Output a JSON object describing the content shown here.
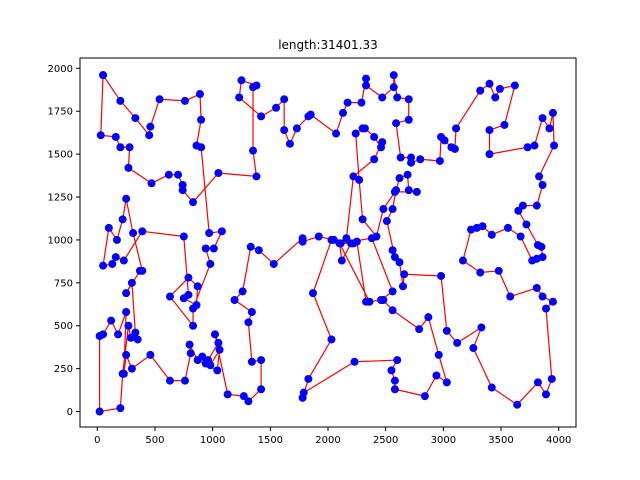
{
  "chart_data": {
    "type": "line",
    "title": "length:31401.33",
    "xlim": [
      -150,
      4150
    ],
    "ylim": [
      -90,
      2060
    ],
    "xticks": [
      0,
      500,
      1000,
      1500,
      2000,
      2500,
      3000,
      3500,
      4000
    ],
    "yticks": [
      0,
      250,
      500,
      750,
      1000,
      1250,
      1500,
      1750,
      2000
    ],
    "grid": false,
    "series": [
      {
        "line_color": "#ff0000",
        "marker_color": "#0000ff",
        "points": [
          [
            50,
            1960
          ],
          [
            30,
            1610
          ],
          [
            160,
            1600
          ],
          [
            200,
            1540
          ],
          [
            280,
            1540
          ],
          [
            270,
            1420
          ],
          [
            470,
            1330
          ],
          [
            620,
            1380
          ],
          [
            700,
            1380
          ],
          [
            740,
            1320
          ],
          [
            740,
            1290
          ],
          [
            830,
            1220
          ],
          [
            1050,
            1390
          ],
          [
            1380,
            1370
          ],
          [
            1350,
            1520
          ],
          [
            1350,
            1890
          ],
          [
            1380,
            1900
          ],
          [
            1250,
            1930
          ],
          [
            1230,
            1830
          ],
          [
            1420,
            1720
          ],
          [
            1550,
            1770
          ],
          [
            1620,
            1820
          ],
          [
            1620,
            1640
          ],
          [
            1670,
            1560
          ],
          [
            1730,
            1650
          ],
          [
            1830,
            1720
          ],
          [
            1850,
            1730
          ],
          [
            2070,
            1620
          ],
          [
            2130,
            1740
          ],
          [
            2170,
            1800
          ],
          [
            2290,
            1800
          ],
          [
            2330,
            1940
          ],
          [
            2330,
            1900
          ],
          [
            2470,
            1830
          ],
          [
            2570,
            1890
          ],
          [
            2570,
            1960
          ],
          [
            2600,
            1830
          ],
          [
            2700,
            1820
          ],
          [
            2700,
            1700
          ],
          [
            2590,
            1680
          ],
          [
            2630,
            1480
          ],
          [
            2720,
            1480
          ],
          [
            2720,
            1450
          ],
          [
            2800,
            1470
          ],
          [
            2970,
            1460
          ],
          [
            2980,
            1600
          ],
          [
            3010,
            1580
          ],
          [
            3070,
            1540
          ],
          [
            3100,
            1530
          ],
          [
            3110,
            1650
          ],
          [
            3320,
            1870
          ],
          [
            3400,
            1910
          ],
          [
            3450,
            1830
          ],
          [
            3490,
            1880
          ],
          [
            3620,
            1900
          ],
          [
            3530,
            1670
          ],
          [
            3400,
            1640
          ],
          [
            3400,
            1500
          ],
          [
            3730,
            1540
          ],
          [
            3790,
            1550
          ],
          [
            3860,
            1710
          ],
          [
            3920,
            1650
          ],
          [
            3950,
            1740
          ],
          [
            3960,
            1550
          ],
          [
            3830,
            1370
          ],
          [
            3860,
            1320
          ],
          [
            3810,
            1200
          ],
          [
            3690,
            1200
          ],
          [
            3650,
            1170
          ],
          [
            3720,
            1090
          ],
          [
            3820,
            970
          ],
          [
            3850,
            960
          ],
          [
            3860,
            900
          ],
          [
            3810,
            890
          ],
          [
            3770,
            880
          ],
          [
            3670,
            1020
          ],
          [
            3560,
            1070
          ],
          [
            3420,
            1030
          ],
          [
            3340,
            1080
          ],
          [
            3290,
            1070
          ],
          [
            3240,
            1060
          ],
          [
            3170,
            880
          ],
          [
            3320,
            810
          ],
          [
            3480,
            820
          ],
          [
            3580,
            670
          ],
          [
            3810,
            720
          ],
          [
            3860,
            670
          ],
          [
            3950,
            640
          ],
          [
            3890,
            600
          ],
          [
            3940,
            190
          ],
          [
            3890,
            100
          ],
          [
            3820,
            170
          ],
          [
            3640,
            40
          ],
          [
            3420,
            140
          ],
          [
            3260,
            370
          ],
          [
            3330,
            490
          ],
          [
            3120,
            400
          ],
          [
            3030,
            470
          ],
          [
            2980,
            790
          ],
          [
            2660,
            800
          ],
          [
            2650,
            730
          ],
          [
            2620,
            870
          ],
          [
            2560,
            940
          ],
          [
            2580,
            900
          ],
          [
            2510,
            1110
          ],
          [
            2560,
            1180
          ],
          [
            2590,
            1290
          ],
          [
            2620,
            1360
          ],
          [
            2690,
            1380
          ],
          [
            2700,
            1290
          ],
          [
            2770,
            1280
          ],
          [
            2580,
            1280
          ],
          [
            2480,
            1180
          ],
          [
            2420,
            1020
          ],
          [
            2300,
            1120
          ],
          [
            2270,
            1350
          ],
          [
            2240,
            1620
          ],
          [
            2300,
            1650
          ],
          [
            2320,
            1650
          ],
          [
            2400,
            1600
          ],
          [
            2460,
            1540
          ],
          [
            2470,
            1570
          ],
          [
            2400,
            1470
          ],
          [
            2220,
            1370
          ],
          [
            2160,
            1010
          ],
          [
            2220,
            980
          ],
          [
            2110,
            980
          ],
          [
            2380,
            1010
          ],
          [
            2560,
            700
          ],
          [
            2460,
            650
          ],
          [
            2360,
            640
          ],
          [
            2100,
            980
          ],
          [
            2120,
            880
          ],
          [
            2200,
            980
          ],
          [
            2030,
            1000
          ],
          [
            1870,
            690
          ],
          [
            2030,
            420
          ],
          [
            1830,
            190
          ],
          [
            1780,
            80
          ],
          [
            1790,
            110
          ],
          [
            2230,
            290
          ],
          [
            2600,
            300
          ],
          [
            2550,
            240
          ],
          [
            2580,
            180
          ],
          [
            2580,
            130
          ],
          [
            2840,
            90
          ],
          [
            2940,
            210
          ],
          [
            3030,
            170
          ],
          [
            2960,
            330
          ],
          [
            2870,
            550
          ],
          [
            2790,
            480
          ],
          [
            2560,
            590
          ],
          [
            2480,
            650
          ],
          [
            2330,
            640
          ],
          [
            2250,
            990
          ],
          [
            2050,
            1000
          ],
          [
            1920,
            1020
          ],
          [
            1780,
            990
          ],
          [
            1780,
            1010
          ],
          [
            1530,
            860
          ],
          [
            1400,
            940
          ],
          [
            1330,
            960
          ],
          [
            1260,
            700
          ],
          [
            1190,
            650
          ],
          [
            1340,
            580
          ],
          [
            1310,
            520
          ],
          [
            1340,
            290
          ],
          [
            1420,
            300
          ],
          [
            1420,
            130
          ],
          [
            1310,
            60
          ],
          [
            1270,
            90
          ],
          [
            1130,
            100
          ],
          [
            1020,
            450
          ],
          [
            1050,
            400
          ],
          [
            960,
            300
          ],
          [
            910,
            320
          ],
          [
            940,
            280
          ],
          [
            980,
            270
          ],
          [
            1060,
            360
          ],
          [
            1040,
            240
          ],
          [
            870,
            300
          ],
          [
            800,
            390
          ],
          [
            810,
            340
          ],
          [
            760,
            180
          ],
          [
            630,
            180
          ],
          [
            460,
            330
          ],
          [
            300,
            250
          ],
          [
            250,
            330
          ],
          [
            230,
            220
          ],
          [
            250,
            580
          ],
          [
            180,
            450
          ],
          [
            120,
            530
          ],
          [
            50,
            450
          ],
          [
            20,
            440
          ],
          [
            20,
            0
          ],
          [
            200,
            20
          ],
          [
            220,
            220
          ],
          [
            270,
            500
          ],
          [
            290,
            430
          ],
          [
            350,
            420
          ],
          [
            330,
            460
          ],
          [
            300,
            750
          ],
          [
            250,
            690
          ],
          [
            370,
            820
          ],
          [
            390,
            820
          ],
          [
            310,
            1040
          ],
          [
            250,
            1240
          ],
          [
            220,
            1120
          ],
          [
            170,
            1000
          ],
          [
            100,
            1070
          ],
          [
            50,
            850
          ],
          [
            130,
            860
          ],
          [
            160,
            900
          ],
          [
            230,
            880
          ],
          [
            390,
            1050
          ],
          [
            750,
            1020
          ],
          [
            790,
            680
          ],
          [
            750,
            660
          ],
          [
            860,
            620
          ],
          [
            870,
            730
          ],
          [
            790,
            780
          ],
          [
            630,
            670
          ],
          [
            830,
            500
          ],
          [
            830,
            600
          ],
          [
            980,
            860
          ],
          [
            940,
            950
          ],
          [
            1010,
            950
          ],
          [
            1080,
            1050
          ],
          [
            970,
            1040
          ],
          [
            900,
            1540
          ],
          [
            860,
            1550
          ],
          [
            900,
            1700
          ],
          [
            890,
            1850
          ],
          [
            760,
            1810
          ],
          [
            540,
            1820
          ],
          [
            460,
            1660
          ],
          [
            450,
            1610
          ],
          [
            330,
            1710
          ],
          [
            200,
            1810
          ],
          [
            50,
            1960
          ]
        ]
      }
    ]
  }
}
